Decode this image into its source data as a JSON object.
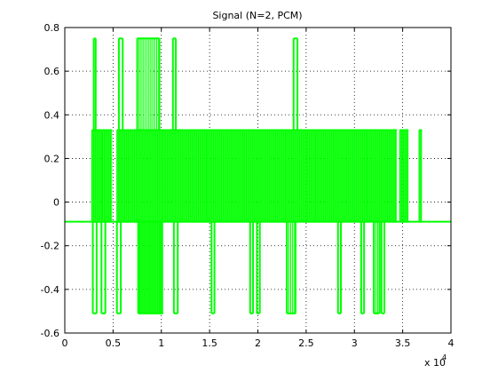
{
  "chart_data": {
    "type": "line",
    "title": "Signal (N=2, PCM)",
    "xlabel": "",
    "ylabel": "",
    "xlim": [
      0,
      40000
    ],
    "ylim": [
      -0.6,
      0.8
    ],
    "x_ticks": [
      0,
      5000,
      10000,
      15000,
      20000,
      25000,
      30000,
      35000,
      40000
    ],
    "x_tick_labels": [
      "0",
      "0.5",
      "1",
      "1.5",
      "2",
      "2.5",
      "3",
      "3.5",
      "4"
    ],
    "x_multiplier_base": "x 10",
    "x_multiplier_exp": "4",
    "y_ticks": [
      -0.6,
      -0.4,
      -0.2,
      0,
      0.2,
      0.4,
      0.6,
      0.8
    ],
    "y_tick_labels": [
      "-0.6",
      "-0.4",
      "-0.2",
      "0",
      "0.2",
      "0.4",
      "0.6",
      "0.8"
    ],
    "grid": true,
    "levels": [
      -0.51,
      -0.09,
      0.33,
      0.75
    ],
    "baseline": -0.09,
    "series": [
      {
        "color": "#00ff00",
        "segments": [
          {
            "x0": 2800,
            "x1": 3900,
            "hi": 0.33,
            "lo": -0.09
          },
          {
            "x0": 3900,
            "x1": 4900,
            "hi": 0.33,
            "lo": -0.09
          },
          {
            "x0": 5400,
            "x1": 6200,
            "hi": 0.33,
            "lo": -0.09
          },
          {
            "x0": 6200,
            "x1": 7600,
            "hi": 0.33,
            "lo": -0.09
          },
          {
            "x0": 7600,
            "x1": 10200,
            "hi": 0.33,
            "lo": -0.51
          },
          {
            "x0": 10200,
            "x1": 14800,
            "hi": 0.33,
            "lo": -0.09
          },
          {
            "x0": 14800,
            "x1": 18600,
            "hi": 0.33,
            "lo": -0.09
          },
          {
            "x0": 18600,
            "x1": 22900,
            "hi": 0.33,
            "lo": -0.09
          },
          {
            "x0": 22900,
            "x1": 26000,
            "hi": 0.33,
            "lo": -0.09
          },
          {
            "x0": 26000,
            "x1": 28000,
            "hi": 0.33,
            "lo": -0.09
          },
          {
            "x0": 28000,
            "x1": 31400,
            "hi": 0.33,
            "lo": -0.09
          },
          {
            "x0": 31400,
            "x1": 34400,
            "hi": 0.33,
            "lo": -0.09
          },
          {
            "x0": 34700,
            "x1": 35600,
            "hi": 0.33,
            "lo": -0.09
          },
          {
            "x0": 36700,
            "x1": 37000,
            "hi": 0.33,
            "lo": -0.09
          }
        ],
        "spikes_low": [
          {
            "x0": 2900,
            "x1": 3300
          },
          {
            "x0": 3800,
            "x1": 4200
          },
          {
            "x0": 5400,
            "x1": 5800
          },
          {
            "x0": 7600,
            "x1": 10000
          },
          {
            "x0": 11300,
            "x1": 11700
          },
          {
            "x0": 15200,
            "x1": 15500
          },
          {
            "x0": 19200,
            "x1": 19500
          },
          {
            "x0": 19900,
            "x1": 20200
          },
          {
            "x0": 23000,
            "x1": 23900
          },
          {
            "x0": 28300,
            "x1": 28600
          },
          {
            "x0": 30700,
            "x1": 31000
          },
          {
            "x0": 32000,
            "x1": 32600
          },
          {
            "x0": 32800,
            "x1": 33100
          }
        ],
        "spikes_high": [
          {
            "x0": 3000,
            "x1": 3200
          },
          {
            "x0": 5600,
            "x1": 6000
          },
          {
            "x0": 7500,
            "x1": 9800
          },
          {
            "x0": 11200,
            "x1": 11500
          },
          {
            "x0": 23700,
            "x1": 24100
          }
        ]
      }
    ]
  }
}
